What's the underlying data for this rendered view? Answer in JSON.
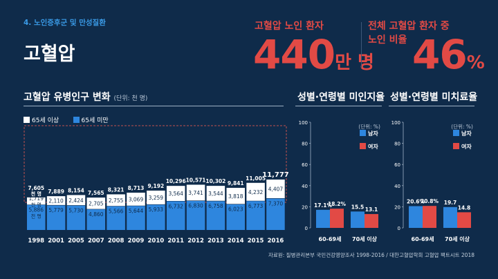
{
  "header": {
    "section_label": "4. 노인증후군 및 만성질환",
    "title": "고혈압"
  },
  "stats": {
    "patients_label": "고혈압 노인 환자",
    "patients_value": "440",
    "patients_unit": "만 명",
    "ratio_label_line1": "전체 고혈압 환자 중",
    "ratio_label_line2": "노인 비율",
    "ratio_value": "46",
    "ratio_unit": "%"
  },
  "colors": {
    "background": "#0f2b4a",
    "blue": "#2e86de",
    "white": "#ffffff",
    "red": "#e24a45",
    "accent_blue_text": "#3a9ae6"
  },
  "source": "자료원: 질병관리본부 국민건강영양조사 1998-2016 / 대한고혈압학회 고혈압 팩트시트 2018",
  "chart_data": [
    {
      "type": "bar",
      "stacked": true,
      "title": "고혈압 유병인구 변화",
      "unit_note": "(단위: 천 명)",
      "legend": [
        "65세 이상",
        "65세 미만"
      ],
      "legend_placement": "top-left",
      "categories": [
        "1998",
        "2001",
        "2005",
        "2007",
        "2008",
        "2009",
        "2010",
        "2011",
        "2012",
        "2013",
        "2014",
        "2015",
        "2016"
      ],
      "series": [
        {
          "name": "65세 미만",
          "color": "#2e86de",
          "values": [
            5886,
            5779,
            5730,
            4860,
            5566,
            5644,
            5933,
            6732,
            6830,
            6758,
            6023,
            6773,
            7370
          ]
        },
        {
          "name": "65세 이상",
          "color": "#ffffff",
          "values": [
            1719,
            2110,
            2424,
            2705,
            2755,
            3069,
            3259,
            3564,
            3741,
            3544,
            3818,
            4232,
            4407
          ]
        }
      ],
      "totals": [
        7605,
        7889,
        8154,
        7565,
        8321,
        8713,
        9192,
        10296,
        10571,
        10302,
        9841,
        11005,
        11777
      ],
      "value_labels": {
        "series0": [
          "5,886",
          "5,779",
          "5,730",
          "4,860",
          "5,566",
          "5,644",
          "5,933",
          "6,732",
          "6,830",
          "6,758",
          "6,023",
          "6,773",
          "7,370"
        ],
        "series1": [
          "1,719",
          "2,110",
          "2,424",
          "2,705",
          "2,755",
          "3,069",
          "3,259",
          "3,564",
          "3,741",
          "3,544",
          "3,818",
          "4,232",
          "4,407"
        ],
        "totals": [
          "7,605",
          "7,889",
          "8,154",
          "7,565",
          "8,321",
          "8,713",
          "9,192",
          "10,296",
          "10,571",
          "10,302",
          "9,841",
          "11,005",
          "11,777"
        ]
      },
      "first_bar_unit_label": "천 명",
      "ylim": [
        0,
        12500
      ],
      "grid": false
    },
    {
      "type": "bar",
      "title": "성별·연령별 미인지율",
      "unit_note": "(단위: %)",
      "categories": [
        "60-69세",
        "70세 이상"
      ],
      "series": [
        {
          "name": "남자",
          "color": "#2e86de",
          "values": [
            17.1,
            15.5
          ]
        },
        {
          "name": "여자",
          "color": "#e24a45",
          "values": [
            18.2,
            13.1
          ]
        }
      ],
      "value_labels": {
        "series0": [
          "17.1%",
          "15.5"
        ],
        "series1": [
          "18.2%",
          "13.1"
        ]
      },
      "yticks": [
        "0",
        "20",
        "40",
        "60",
        "80",
        "100"
      ],
      "ylim": [
        0,
        100
      ],
      "legend_placement": "right",
      "grid": false
    },
    {
      "type": "bar",
      "title": "성별·연령별 미치료율",
      "unit_note": "(단위: %)",
      "categories": [
        "60-69세",
        "70세 이상"
      ],
      "series": [
        {
          "name": "남자",
          "color": "#2e86de",
          "values": [
            20.6,
            19.7
          ]
        },
        {
          "name": "여자",
          "color": "#e24a45",
          "values": [
            20.8,
            14.8
          ]
        }
      ],
      "value_labels": {
        "series0": [
          "20.6%",
          "19.7"
        ],
        "series1": [
          "20.8%",
          "14.8"
        ]
      },
      "yticks": [
        "0",
        "20",
        "40",
        "60",
        "80",
        "100"
      ],
      "ylim": [
        0,
        100
      ],
      "legend_placement": "right",
      "grid": false
    }
  ]
}
